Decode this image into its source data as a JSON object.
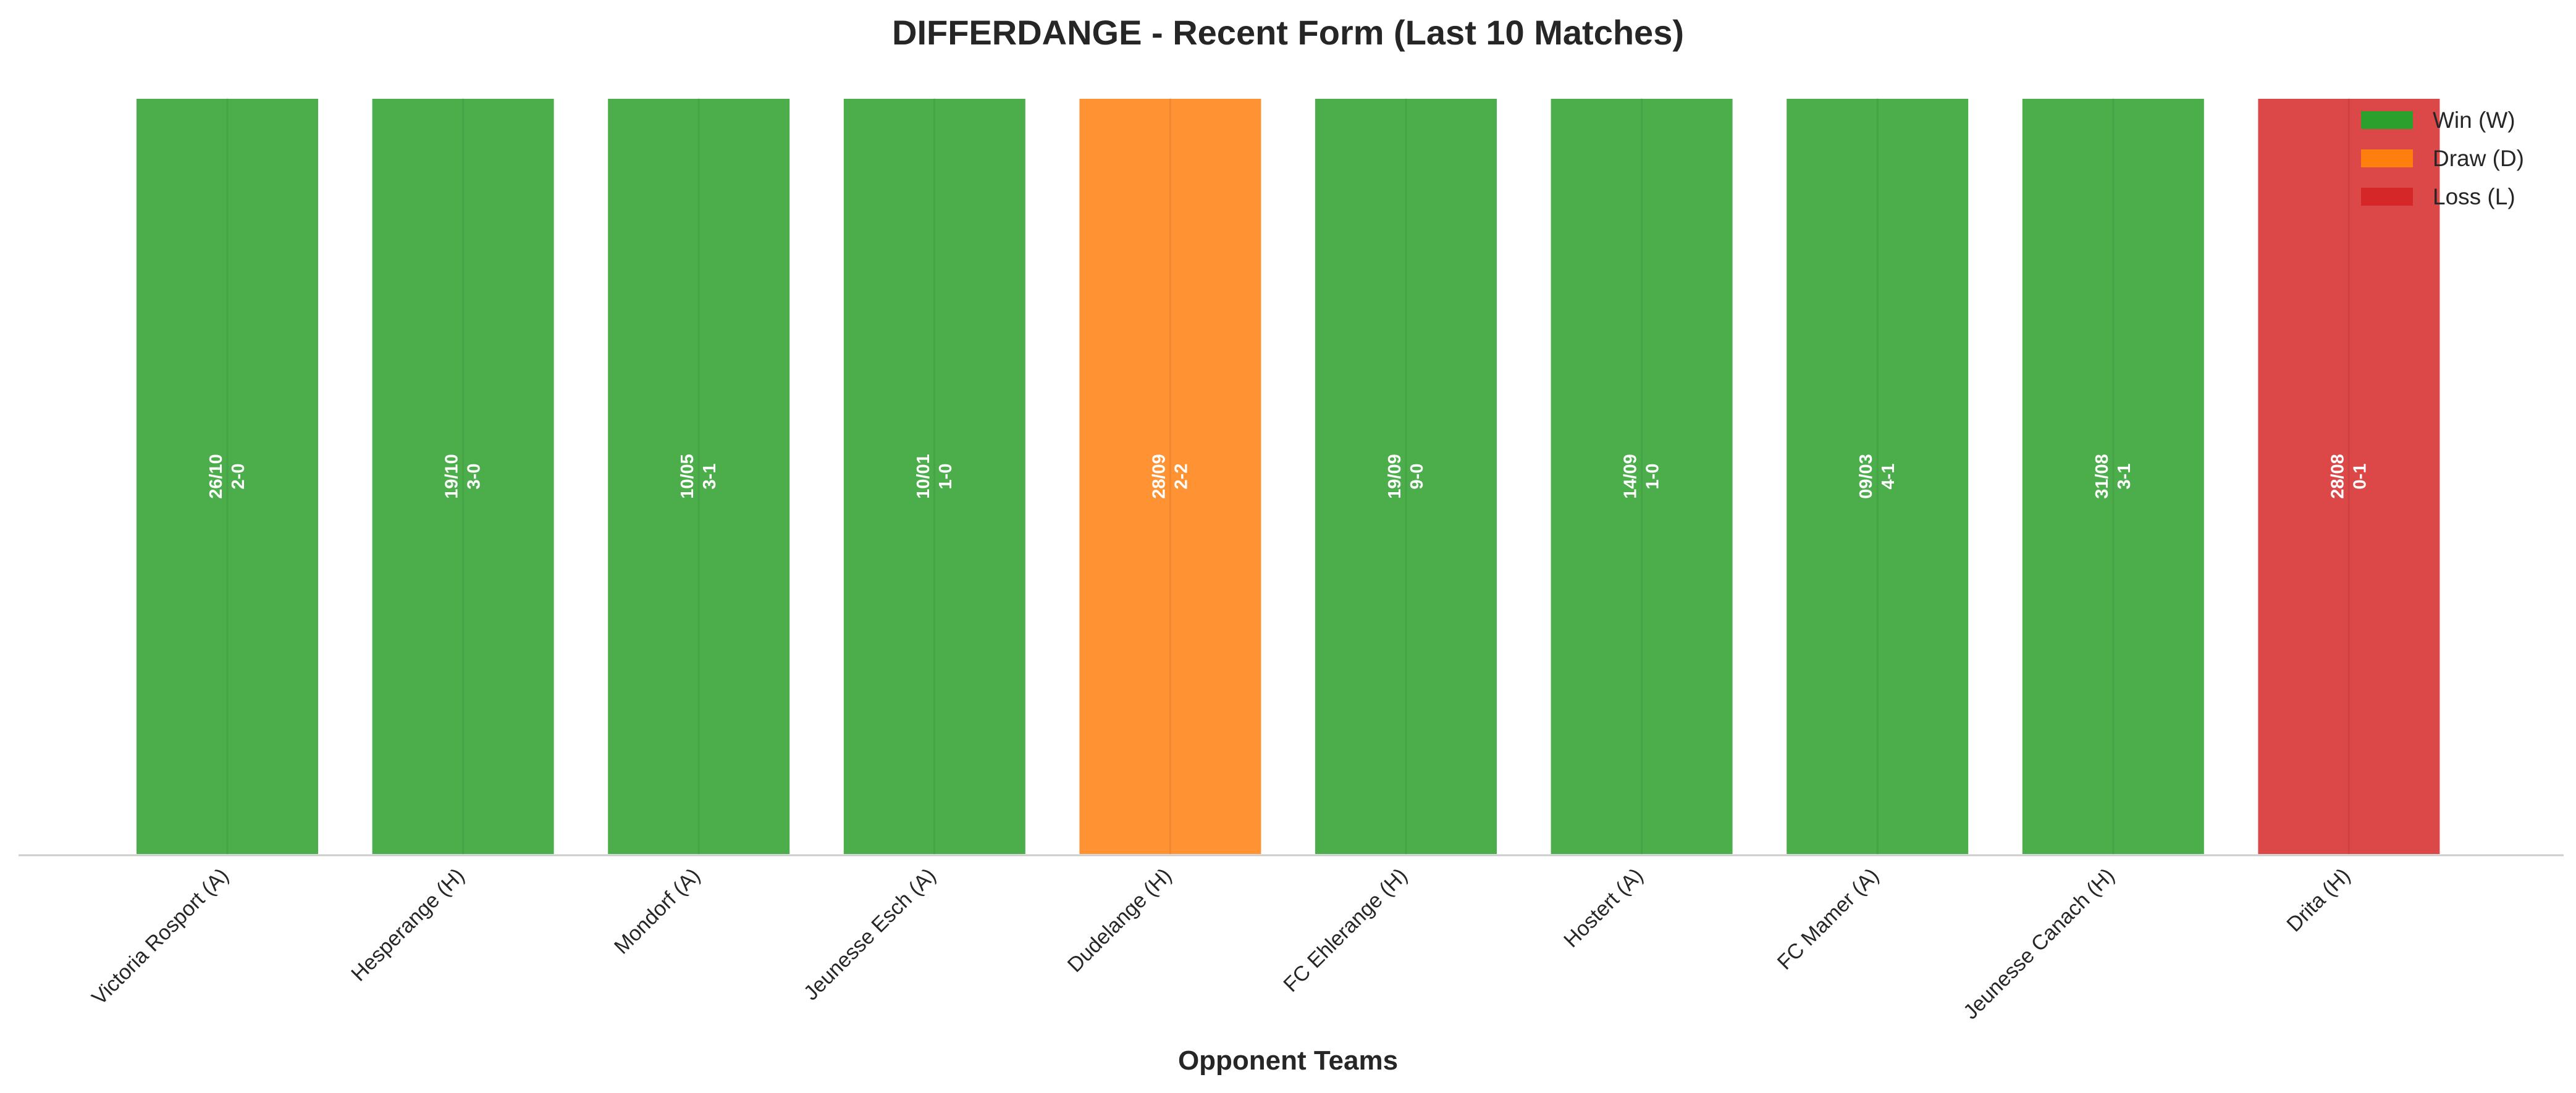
{
  "chart_data": {
    "type": "bar",
    "title": "DIFFERDANGE - Recent Form (Last 10 Matches)",
    "xlabel": "Opponent Teams",
    "ylabel": "",
    "ylim": [
      0,
      1
    ],
    "grid": false,
    "legend_position": "top-right",
    "categories": [
      "Victoria Rosport (A)",
      "Hesperange (H)",
      "Mondorf (A)",
      "Jeunesse Esch (A)",
      "Dudelange (H)",
      "FC Ehlerange (H)",
      "Hostert (A)",
      "FC Mamer (A)",
      "Jeunesse Canach (H)",
      "Drita (H)"
    ],
    "values": [
      1,
      1,
      1,
      1,
      1,
      1,
      1,
      1,
      1,
      1
    ],
    "results": [
      "W",
      "W",
      "W",
      "W",
      "D",
      "W",
      "W",
      "W",
      "W",
      "L"
    ],
    "dates": [
      "26/10",
      "19/10",
      "10/05",
      "10/01",
      "28/09",
      "19/09",
      "14/09",
      "09/03",
      "31/08",
      "28/08"
    ],
    "scores": [
      "2-0",
      "3-0",
      "3-1",
      "1-0",
      "2-2",
      "9-0",
      "1-0",
      "4-1",
      "3-1",
      "0-1"
    ],
    "legend": [
      {
        "key": "W",
        "label": "Win (W)"
      },
      {
        "key": "D",
        "label": "Draw (D)"
      },
      {
        "key": "L",
        "label": "Loss (L)"
      }
    ],
    "colors": {
      "W": "#2ca02c",
      "D": "#ff7f0e",
      "L": "#d62728"
    }
  }
}
